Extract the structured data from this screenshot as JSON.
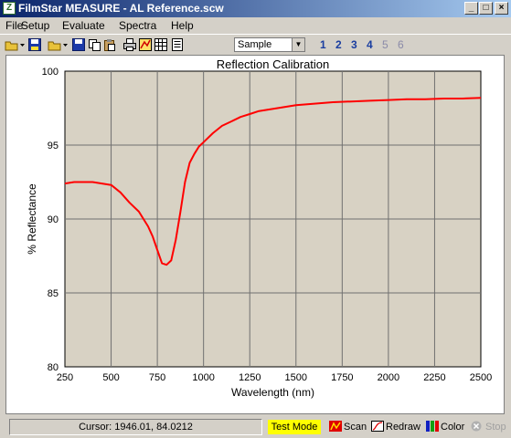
{
  "window": {
    "title": "FilmStar MEASURE - AL Reference.scw",
    "min": "_",
    "max": "□",
    "close": "×"
  },
  "menu": [
    "File",
    "Setup",
    "Evaluate",
    "Spectra",
    "Help"
  ],
  "toolbar": {
    "select_value": "Sample",
    "channels": [
      "1",
      "2",
      "3",
      "4",
      "5",
      "6"
    ]
  },
  "chart_data": {
    "type": "line",
    "title": "Reflection Calibration",
    "xlabel": "Wavelength (nm)",
    "ylabel": "% Reflectance",
    "xlim": [
      250,
      2500
    ],
    "ylim": [
      80,
      100
    ],
    "xticks": [
      250,
      500,
      750,
      1000,
      1250,
      1500,
      1750,
      2000,
      2250,
      2500
    ],
    "yticks": [
      80,
      85,
      90,
      95,
      100
    ],
    "grid": true,
    "series": [
      {
        "color": "#ff0000",
        "x": [
          250,
          300,
          350,
          400,
          450,
          500,
          550,
          600,
          650,
          700,
          725,
          750,
          775,
          800,
          825,
          850,
          875,
          900,
          925,
          950,
          975,
          1000,
          1050,
          1100,
          1150,
          1200,
          1250,
          1300,
          1400,
          1500,
          1600,
          1700,
          1800,
          1900,
          2000,
          2100,
          2200,
          2300,
          2400,
          2500
        ],
        "y": [
          92.4,
          92.5,
          92.5,
          92.5,
          92.4,
          92.3,
          91.8,
          91.1,
          90.5,
          89.5,
          88.8,
          87.9,
          87.0,
          86.9,
          87.2,
          88.6,
          90.5,
          92.5,
          93.8,
          94.4,
          94.9,
          95.2,
          95.8,
          96.3,
          96.6,
          96.9,
          97.1,
          97.3,
          97.5,
          97.7,
          97.8,
          97.9,
          97.95,
          98.0,
          98.05,
          98.1,
          98.1,
          98.15,
          98.15,
          98.2
        ]
      }
    ]
  },
  "status": {
    "cursor": "Cursor: 1946.01, 84.0212",
    "test_mode": "Test Mode",
    "scan": "Scan",
    "redraw": "Redraw",
    "color": "Color",
    "stop": "Stop"
  }
}
